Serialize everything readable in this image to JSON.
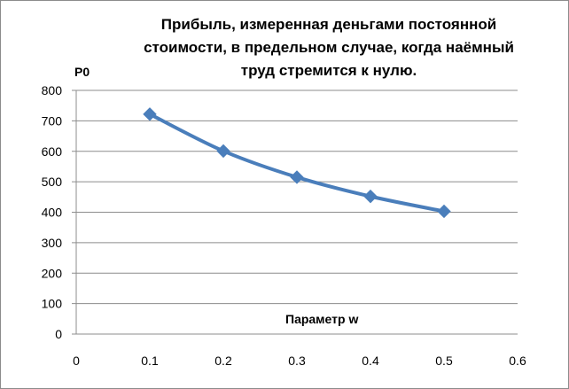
{
  "chart_data": {
    "type": "line",
    "title": "Прибыль, измеренная деньгами постоянной стоимости, в предельном случае, когда наёмный труд стремится к нулю.",
    "xlabel": "Параметр w",
    "ylabel": "P0",
    "xlim": [
      0,
      0.6
    ],
    "ylim": [
      0,
      800
    ],
    "x_ticks": [
      "0",
      "0.1",
      "0.2",
      "0.3",
      "0.4",
      "0.5",
      "0.6"
    ],
    "y_ticks": [
      "0",
      "100",
      "200",
      "300",
      "400",
      "500",
      "600",
      "700",
      "800"
    ],
    "grid": "horizontal",
    "legend": "none",
    "series": [
      {
        "color": "#4a7ebb",
        "marker": "diamond",
        "x": [
          0.1,
          0.2,
          0.3,
          0.4,
          0.5
        ],
        "y": [
          722,
          601,
          515,
          452,
          403
        ]
      }
    ]
  }
}
